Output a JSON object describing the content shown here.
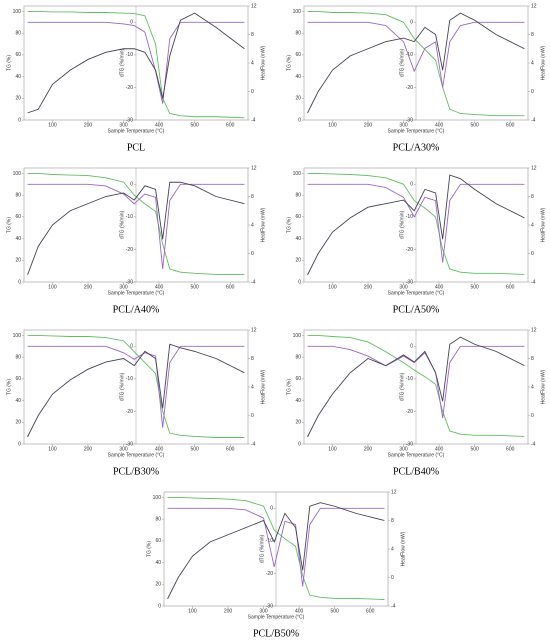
{
  "chart_data": [
    {
      "type": "line",
      "title": "PCL",
      "xlabel": "Sample Temperature (°C)",
      "x": [
        30,
        60,
        100,
        150,
        200,
        250,
        300,
        330,
        360,
        390,
        410,
        430,
        460,
        500,
        560,
        640
      ],
      "xlim": [
        20,
        650
      ],
      "xticks": [
        100,
        200,
        300,
        400,
        500,
        600
      ],
      "ylim": [
        0,
        105
      ],
      "yticks": [
        0,
        20,
        40,
        60,
        80,
        100
      ],
      "y2lim": [
        -4,
        12
      ],
      "y2ticks": [
        -4,
        0,
        4,
        8,
        12
      ],
      "y3lim": [
        -30,
        5
      ],
      "y3ticks": [
        -30,
        -20,
        -10,
        0
      ],
      "series": [
        {
          "name": "TG (%)",
          "color": "#5fbf5f",
          "values": [
            100,
            100,
            99.5,
            99.5,
            99,
            99,
            98.5,
            98,
            96,
            70,
            20,
            6,
            4,
            3,
            3,
            2
          ]
        },
        {
          "name": "dTG (%/min)",
          "color": "#9a66cc",
          "axis": "y3",
          "values": [
            0,
            0,
            0,
            0,
            0,
            0,
            -0.5,
            -1,
            -3,
            -15,
            -25,
            -5,
            0,
            0,
            0,
            0
          ]
        },
        {
          "name": "HeatFlow (mW)",
          "color": "#444455",
          "axis": "y2",
          "values": [
            -3,
            -2.5,
            1,
            3,
            4.5,
            5.5,
            6,
            6,
            5.5,
            3,
            -1,
            5,
            10,
            11,
            9,
            6
          ]
        }
      ]
    },
    {
      "type": "line",
      "title": "PCL/A30%",
      "xlabel": "Sample Temperature (°C)",
      "x": [
        30,
        60,
        100,
        150,
        200,
        250,
        300,
        330,
        360,
        390,
        410,
        430,
        460,
        500,
        560,
        640
      ],
      "xlim": [
        20,
        650
      ],
      "xticks": [
        100,
        200,
        300,
        400,
        500,
        600
      ],
      "ylim": [
        0,
        105
      ],
      "yticks": [
        0,
        20,
        40,
        60,
        80,
        100
      ],
      "y2lim": [
        -4,
        12
      ],
      "y2ticks": [
        -4,
        0,
        4,
        8,
        12
      ],
      "y3lim": [
        -30,
        5
      ],
      "y3ticks": [
        -30,
        -20,
        -10,
        0
      ],
      "series": [
        {
          "name": "TG (%)",
          "color": "#5fbf5f",
          "values": [
            100,
            100,
            99,
            99,
            98.5,
            97,
            90,
            75,
            65,
            55,
            30,
            10,
            6,
            5,
            4,
            4
          ]
        },
        {
          "name": "dTG (%/min)",
          "color": "#9a66cc",
          "axis": "y3",
          "values": [
            0,
            0,
            0,
            0,
            0,
            -1,
            -6,
            -15,
            -8,
            -6,
            -20,
            -6,
            -1,
            0,
            0,
            0
          ]
        },
        {
          "name": "HeatFlow (mW)",
          "color": "#444455",
          "axis": "y2",
          "values": [
            -3,
            0,
            3,
            5,
            6,
            7,
            7.5,
            7,
            9,
            8,
            3,
            10,
            11,
            10,
            8,
            6
          ]
        }
      ]
    },
    {
      "type": "line",
      "title": "PCL/A40%",
      "xlabel": "Sample Temperature (°C)",
      "x": [
        30,
        60,
        100,
        150,
        200,
        250,
        300,
        330,
        360,
        390,
        410,
        430,
        460,
        500,
        560,
        640
      ],
      "xlim": [
        20,
        650
      ],
      "xticks": [
        100,
        200,
        300,
        400,
        500,
        600
      ],
      "ylim": [
        0,
        105
      ],
      "yticks": [
        0,
        20,
        40,
        60,
        80,
        100
      ],
      "y2lim": [
        -4,
        12
      ],
      "y2ticks": [
        -4,
        0,
        4,
        8,
        12
      ],
      "y3lim": [
        -30,
        5
      ],
      "y3ticks": [
        -30,
        -20,
        -10,
        0
      ],
      "series": [
        {
          "name": "TG (%)",
          "color": "#5fbf5f",
          "values": [
            100,
            100,
            99,
            98.5,
            98,
            96,
            92,
            80,
            72,
            65,
            35,
            12,
            9,
            8,
            7,
            7
          ]
        },
        {
          "name": "dTG (%/min)",
          "color": "#9a66cc",
          "axis": "y3",
          "values": [
            0,
            0,
            0,
            0,
            0,
            -0.5,
            -3,
            -6,
            -3,
            -4,
            -26,
            -5,
            0,
            0,
            0,
            0
          ]
        },
        {
          "name": "HeatFlow (mW)",
          "color": "#444455",
          "axis": "y2",
          "values": [
            -3,
            1,
            4,
            6,
            7,
            8,
            8.5,
            7.5,
            9.5,
            9,
            2,
            10,
            10,
            9.5,
            8,
            7
          ]
        }
      ]
    },
    {
      "type": "line",
      "title": "PCL/A50%",
      "xlabel": "Sample Temperature (°C)",
      "x": [
        30,
        60,
        100,
        150,
        200,
        250,
        300,
        330,
        360,
        390,
        410,
        430,
        460,
        500,
        560,
        640
      ],
      "xlim": [
        20,
        650
      ],
      "xticks": [
        100,
        200,
        300,
        400,
        500,
        600
      ],
      "ylim": [
        0,
        105
      ],
      "yticks": [
        0,
        20,
        40,
        60,
        80,
        100
      ],
      "y2lim": [
        -4,
        12
      ],
      "y2ticks": [
        -4,
        0,
        4,
        8,
        12
      ],
      "y3lim": [
        -30,
        5
      ],
      "y3ticks": [
        -30,
        -20,
        -10,
        0
      ],
      "series": [
        {
          "name": "TG (%)",
          "color": "#5fbf5f",
          "values": [
            100,
            100,
            99.5,
            99,
            98,
            96,
            90,
            75,
            68,
            60,
            30,
            12,
            9,
            8,
            8,
            7
          ]
        },
        {
          "name": "dTG (%/min)",
          "color": "#9a66cc",
          "axis": "y3",
          "values": [
            0,
            0,
            0,
            0,
            0,
            -1,
            -4,
            -10,
            -4,
            -5,
            -24,
            -5,
            0,
            0,
            0,
            0
          ]
        },
        {
          "name": "HeatFlow (mW)",
          "color": "#444455",
          "axis": "y2",
          "values": [
            -3,
            0,
            3,
            5,
            6.5,
            7,
            7.5,
            6,
            9,
            8.5,
            2,
            11,
            10.5,
            9,
            7,
            5
          ]
        }
      ]
    },
    {
      "type": "line",
      "title": "PCL/B30%",
      "xlabel": "Sample Temperature (°C)",
      "x": [
        30,
        60,
        100,
        150,
        200,
        250,
        300,
        330,
        360,
        390,
        410,
        430,
        460,
        500,
        560,
        640
      ],
      "xlim": [
        20,
        650
      ],
      "xticks": [
        100,
        200,
        300,
        400,
        500,
        600
      ],
      "ylim": [
        0,
        105
      ],
      "yticks": [
        0,
        20,
        40,
        60,
        80,
        100
      ],
      "y2lim": [
        -4,
        12
      ],
      "y2ticks": [
        -4,
        0,
        4,
        8,
        12
      ],
      "y3lim": [
        -30,
        5
      ],
      "y3ticks": [
        -30,
        -20,
        -10,
        0
      ],
      "series": [
        {
          "name": "TG (%)",
          "color": "#5fbf5f",
          "values": [
            100,
            100,
            99.5,
            99,
            99,
            98,
            95,
            85,
            75,
            65,
            30,
            10,
            8,
            7,
            6,
            6
          ]
        },
        {
          "name": "dTG (%/min)",
          "color": "#9a66cc",
          "axis": "y3",
          "values": [
            0,
            0,
            0,
            0,
            0,
            0,
            -2,
            -4,
            -2,
            -3,
            -25,
            -5,
            0,
            0,
            0,
            0
          ]
        },
        {
          "name": "HeatFlow (mW)",
          "color": "#444455",
          "axis": "y2",
          "values": [
            -3,
            0,
            3,
            5,
            6.5,
            7.5,
            8,
            7,
            9,
            8,
            1,
            10,
            9.5,
            9,
            8,
            6
          ]
        }
      ]
    },
    {
      "type": "line",
      "title": "PCL/B40%",
      "xlabel": "Sample Temperature (°C)",
      "x": [
        30,
        60,
        100,
        150,
        200,
        250,
        300,
        330,
        360,
        390,
        410,
        430,
        460,
        500,
        560,
        640
      ],
      "xlim": [
        20,
        650
      ],
      "xticks": [
        100,
        200,
        300,
        400,
        500,
        600
      ],
      "ylim": [
        0,
        105
      ],
      "yticks": [
        0,
        20,
        40,
        60,
        80,
        100
      ],
      "y2lim": [
        -4,
        12
      ],
      "y2ticks": [
        -4,
        0,
        4,
        8,
        12
      ],
      "y3lim": [
        -30,
        5
      ],
      "y3ticks": [
        -30,
        -20,
        -10,
        0
      ],
      "series": [
        {
          "name": "TG (%)",
          "color": "#5fbf5f",
          "values": [
            100,
            100,
            99,
            98,
            94,
            85,
            75,
            68,
            62,
            55,
            30,
            12,
            9,
            8,
            8,
            7
          ]
        },
        {
          "name": "dTG (%/min)",
          "color": "#9a66cc",
          "axis": "y3",
          "values": [
            0,
            0,
            0,
            -1,
            -3,
            -6,
            -3,
            -5,
            -2,
            -8,
            -22,
            -5,
            0,
            0,
            0,
            0
          ]
        },
        {
          "name": "HeatFlow (mW)",
          "color": "#444455",
          "axis": "y2",
          "values": [
            -3,
            0,
            3,
            6,
            8,
            7,
            8.5,
            7.5,
            9,
            6,
            2,
            10,
            11,
            10,
            9,
            7
          ]
        }
      ]
    },
    {
      "type": "line",
      "title": "PCL/B50%",
      "xlabel": "Sample Temperature (°C)",
      "x": [
        30,
        60,
        100,
        150,
        200,
        250,
        300,
        330,
        360,
        390,
        410,
        430,
        460,
        500,
        560,
        640
      ],
      "xlim": [
        20,
        650
      ],
      "xticks": [
        100,
        200,
        300,
        400,
        500,
        600
      ],
      "ylim": [
        0,
        105
      ],
      "yticks": [
        0,
        20,
        40,
        60,
        80,
        100
      ],
      "y2lim": [
        -4,
        12
      ],
      "y2ticks": [
        -4,
        0,
        4,
        8,
        12
      ],
      "y3lim": [
        -30,
        5
      ],
      "y3ticks": [
        -30,
        -20,
        -10,
        0
      ],
      "series": [
        {
          "name": "TG (%)",
          "color": "#5fbf5f",
          "values": [
            100,
            100,
            99.5,
            99,
            98.5,
            97,
            92,
            70,
            62,
            55,
            28,
            10,
            8,
            7,
            7,
            6
          ]
        },
        {
          "name": "dTG (%/min)",
          "color": "#9a66cc",
          "axis": "y3",
          "values": [
            0,
            0,
            0,
            0,
            0,
            -0.5,
            -3,
            -18,
            -4,
            -5,
            -24,
            -5,
            0,
            0,
            0,
            0
          ]
        },
        {
          "name": "HeatFlow (mW)",
          "color": "#444455",
          "axis": "y2",
          "values": [
            -3,
            0,
            3,
            5,
            6,
            7,
            8,
            5,
            9,
            7,
            1,
            10,
            10.5,
            10,
            9,
            8
          ]
        }
      ]
    }
  ]
}
